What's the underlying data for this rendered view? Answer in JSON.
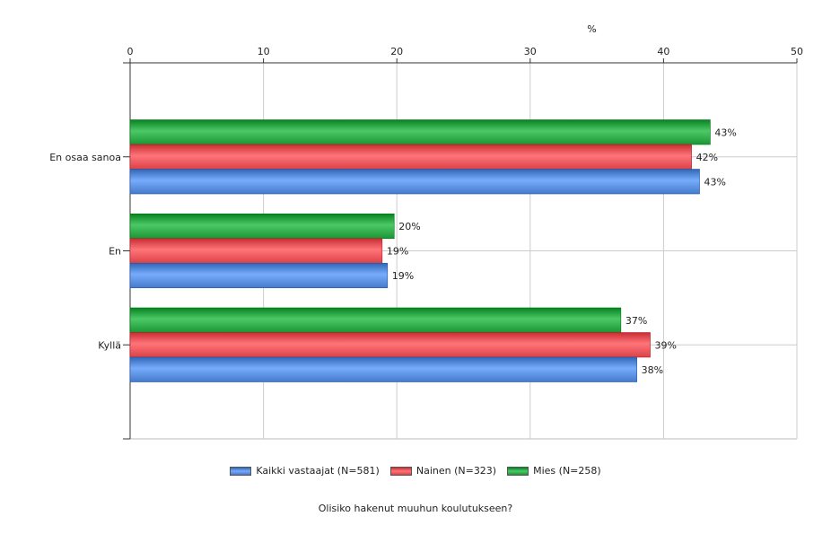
{
  "chart_data": {
    "type": "bar",
    "orientation": "horizontal",
    "axis_unit": "%",
    "x_ticks": [
      "0",
      "10",
      "20",
      "30",
      "40",
      "50"
    ],
    "xlim": [
      0,
      50
    ],
    "grid": true,
    "legend_position": "bottom",
    "categories": [
      "En osaa sanoa",
      "En",
      "Kyllä"
    ],
    "series": [
      {
        "name": "Mies (N=258)",
        "color": "#1f9b3a",
        "values": [
          43.5,
          19.8,
          36.8
        ],
        "labels": [
          "43%",
          "20%",
          "37%"
        ]
      },
      {
        "name": "Nainen (N=323)",
        "color": "#e0474c",
        "values": [
          42.1,
          18.9,
          39.0
        ],
        "labels": [
          "42%",
          "19%",
          "39%"
        ]
      },
      {
        "name": "Kaikki vastaajat (N=581)",
        "color": "#4a7fcf",
        "values": [
          42.7,
          19.3,
          38.0
        ],
        "labels": [
          "43%",
          "19%",
          "38%"
        ]
      }
    ],
    "legend_order": [
      2,
      1,
      0
    ],
    "question": "Olisiko hakenut muuhun koulutukseen?"
  }
}
